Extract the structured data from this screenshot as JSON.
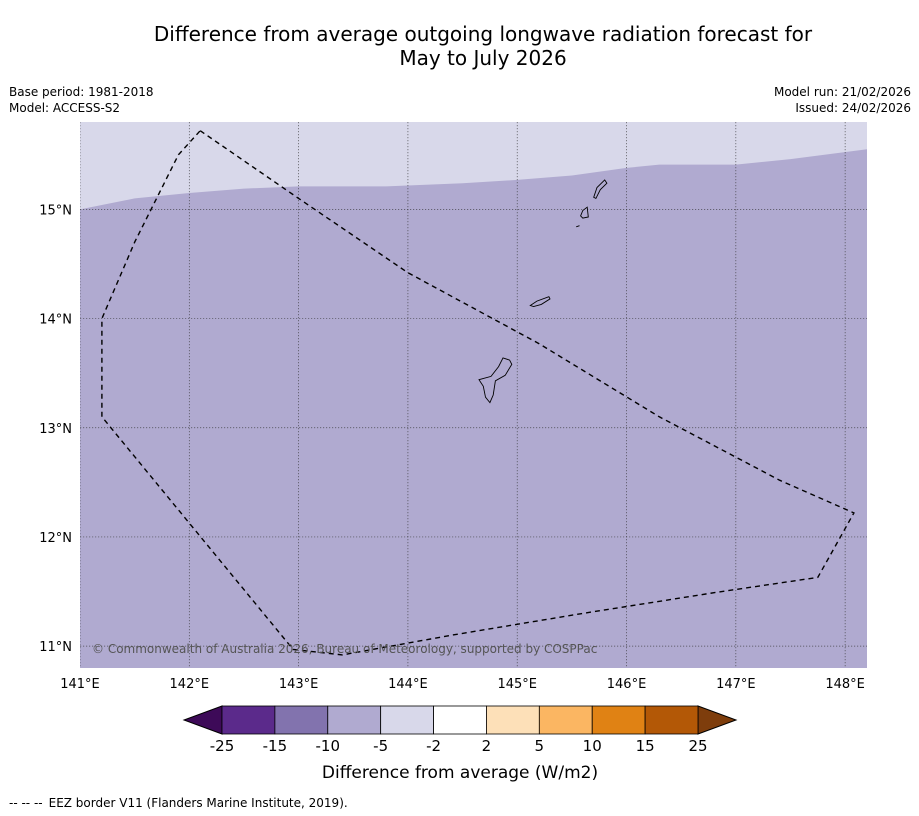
{
  "title": {
    "line1": "Difference from average outgoing longwave radiation forecast for",
    "line2": "May to July 2026"
  },
  "meta_left": {
    "base_period": "Base period: 1981-2018",
    "model": "Model: ACCESS-S2"
  },
  "meta_right": {
    "model_run": "Model run: 21/02/2026",
    "issued": "Issued: 24/02/2026"
  },
  "map": {
    "lon_range": [
      141.0,
      148.2
    ],
    "lat_range": [
      10.8,
      15.8
    ],
    "lon_ticks": [
      141,
      142,
      143,
      144,
      145,
      146,
      147,
      148
    ],
    "lon_labels": [
      "141°E",
      "142°E",
      "143°E",
      "144°E",
      "145°E",
      "146°E",
      "147°E",
      "148°E"
    ],
    "lat_ticks": [
      15,
      14,
      13,
      12,
      11
    ],
    "lat_labels": [
      "15°N",
      "14°N",
      "13°N",
      "12°N",
      "11°N"
    ],
    "background_class_color": "#b0aad0",
    "upper_class_color": "#d8d8ea",
    "upper_class_boundary": [
      [
        141.0,
        15.0
      ],
      [
        141.5,
        15.1
      ],
      [
        142.0,
        15.15
      ],
      [
        142.5,
        15.19
      ],
      [
        143.0,
        15.21
      ],
      [
        143.8,
        15.21
      ],
      [
        144.5,
        15.24
      ],
      [
        145.0,
        15.27
      ],
      [
        145.5,
        15.31
      ],
      [
        146.0,
        15.38
      ],
      [
        146.3,
        15.41
      ],
      [
        147.0,
        15.41
      ],
      [
        147.5,
        15.46
      ],
      [
        148.2,
        15.55
      ]
    ],
    "eez_boundary": [
      [
        142.1,
        15.72
      ],
      [
        143.0,
        15.1
      ],
      [
        144.0,
        14.42
      ],
      [
        145.2,
        13.77
      ],
      [
        146.3,
        13.1
      ],
      [
        147.4,
        12.52
      ],
      [
        148.08,
        12.22
      ],
      [
        147.75,
        11.63
      ],
      [
        146.8,
        11.49
      ],
      [
        145.6,
        11.3
      ],
      [
        144.4,
        11.1
      ],
      [
        143.4,
        10.92
      ],
      [
        142.95,
        10.97
      ],
      [
        141.2,
        13.1
      ],
      [
        141.2,
        14.0
      ],
      [
        141.5,
        14.7
      ],
      [
        141.9,
        15.5
      ],
      [
        142.1,
        15.72
      ]
    ],
    "islands": [
      {
        "name": "Guam",
        "coords": [
          [
            144.75,
            13.23
          ],
          [
            144.71,
            13.28
          ],
          [
            144.69,
            13.38
          ],
          [
            144.65,
            13.44
          ],
          [
            144.76,
            13.47
          ],
          [
            144.83,
            13.56
          ],
          [
            144.87,
            13.64
          ],
          [
            144.93,
            13.62
          ],
          [
            144.95,
            13.58
          ],
          [
            144.89,
            13.48
          ],
          [
            144.8,
            13.43
          ],
          [
            144.78,
            13.3
          ],
          [
            144.75,
            13.23
          ]
        ]
      },
      {
        "name": "Rota",
        "coords": [
          [
            145.12,
            14.12
          ],
          [
            145.18,
            14.16
          ],
          [
            145.29,
            14.2
          ],
          [
            145.3,
            14.18
          ],
          [
            145.22,
            14.13
          ],
          [
            145.15,
            14.11
          ],
          [
            145.12,
            14.12
          ]
        ]
      },
      {
        "name": "Tinian",
        "coords": [
          [
            145.58,
            14.94
          ],
          [
            145.6,
            14.99
          ],
          [
            145.64,
            15.02
          ],
          [
            145.65,
            14.93
          ],
          [
            145.6,
            14.92
          ],
          [
            145.58,
            14.94
          ]
        ]
      },
      {
        "name": "Saipan",
        "coords": [
          [
            145.7,
            15.11
          ],
          [
            145.73,
            15.2
          ],
          [
            145.8,
            15.27
          ],
          [
            145.82,
            15.24
          ],
          [
            145.76,
            15.18
          ],
          [
            145.72,
            15.1
          ],
          [
            145.7,
            15.11
          ]
        ]
      },
      {
        "name": "Aguijan",
        "coords": [
          [
            145.54,
            14.84
          ],
          [
            145.57,
            14.85
          ]
        ]
      }
    ],
    "copyright": "© Commonwealth of Australia 2026, Bureau of Meteorology, supported by COSPPac"
  },
  "colorbar": {
    "label": "Difference from average (W/m2)",
    "ticks": [
      "-25",
      "-15",
      "-10",
      "-5",
      "-2",
      "2",
      "5",
      "10",
      "15",
      "25"
    ],
    "under_color": "#3d0a58",
    "over_color": "#7e3d0c",
    "colors": [
      "#5b2a8b",
      "#8273ae",
      "#b0aad0",
      "#d8d8ea",
      "#ffffff",
      "#fde0b8",
      "#fbb662",
      "#e08214",
      "#b35806"
    ]
  },
  "footnote": {
    "symbol": "-- -- --",
    "text": "EEZ border V11 (Flanders Marine Institute, 2019)."
  }
}
